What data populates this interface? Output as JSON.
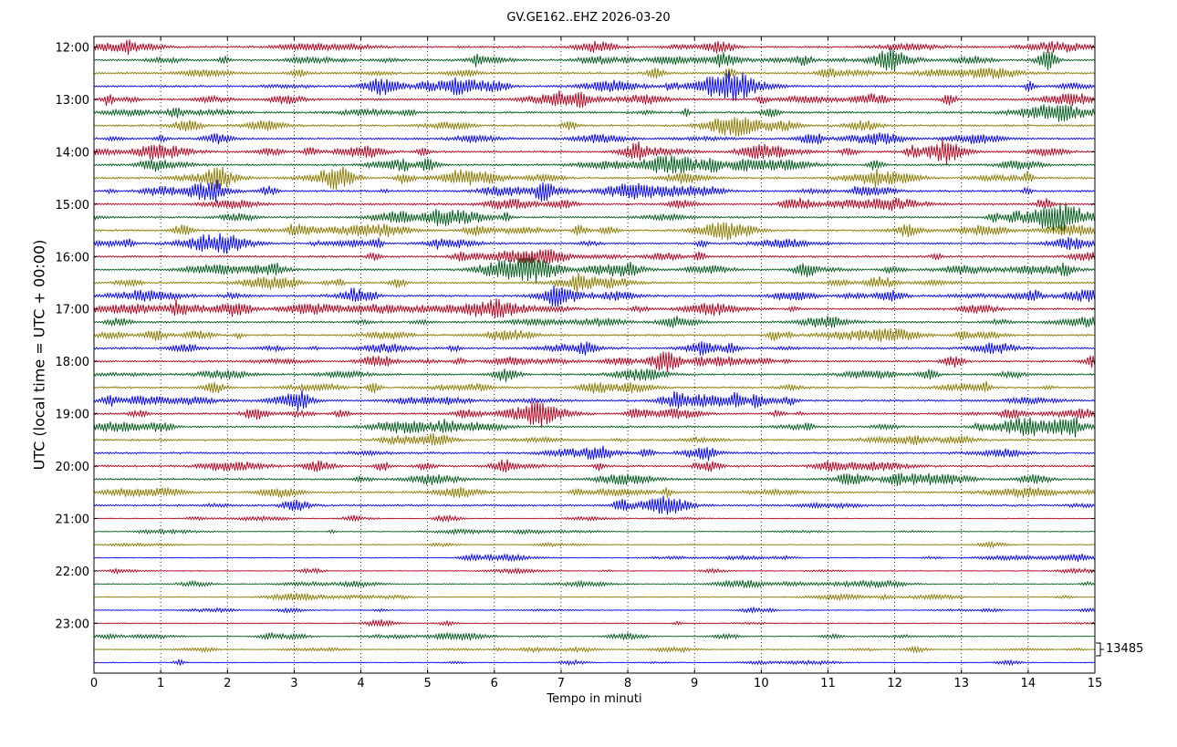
{
  "chart_data": {
    "type": "line",
    "title": "GV.GE162..EHZ 2026-03-20",
    "xlabel": "Tempo in minuti",
    "ylabel": "UTC (local time = UTC + 00:00)",
    "xlim": [
      0,
      15
    ],
    "x_ticks": [
      "0",
      "1",
      "2",
      "3",
      "4",
      "5",
      "6",
      "7",
      "8",
      "9",
      "10",
      "11",
      "12",
      "13",
      "14",
      "15"
    ],
    "y_tick_labels": [
      "12:00",
      "13:00",
      "14:00",
      "15:00",
      "16:00",
      "17:00",
      "18:00",
      "19:00",
      "20:00",
      "21:00",
      "22:00",
      "23:00"
    ],
    "trace_start_times": [
      "12:00",
      "12:15",
      "12:30",
      "12:45",
      "13:00",
      "13:15",
      "13:30",
      "13:45",
      "14:00",
      "14:15",
      "14:30",
      "14:45",
      "15:00",
      "15:15",
      "15:30",
      "15:45",
      "16:00",
      "16:15",
      "16:30",
      "16:45",
      "17:00",
      "17:15",
      "17:30",
      "17:45",
      "18:00",
      "18:15",
      "18:30",
      "18:45",
      "19:00",
      "19:15",
      "19:30",
      "19:45",
      "20:00",
      "20:15",
      "20:30",
      "20:45",
      "21:00",
      "21:15",
      "21:30",
      "21:45",
      "22:00",
      "22:15",
      "22:30",
      "22:45",
      "23:00",
      "23:15",
      "23:30",
      "23:45"
    ],
    "trace_colors": [
      "#b2001c",
      "#005b1a",
      "#8a7a00",
      "#0000ff"
    ],
    "scale_label": "13485",
    "grid": "vertical dotted lines at each minute",
    "legend": "none"
  }
}
